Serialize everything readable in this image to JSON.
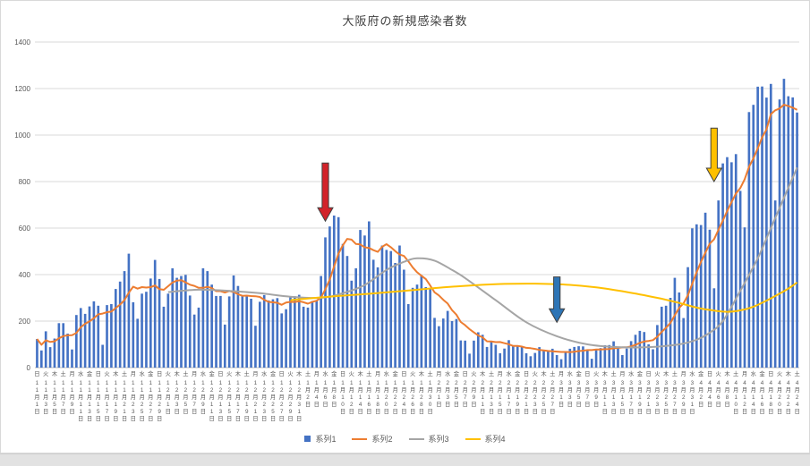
{
  "chart_data": {
    "type": "combo",
    "title": "大阪府の新規感染者数",
    "xlabel": "",
    "ylabel": "",
    "ylim": [
      0,
      1400
    ],
    "ytick_interval": 200,
    "grid": true,
    "legend_position": "bottom",
    "x_axis": {
      "tick_step": 2,
      "month_suffix": "月",
      "day_suffix": "日",
      "weekday_cycle": [
        "日",
        "月",
        "火",
        "水",
        "木",
        "金",
        "土"
      ],
      "start_weekday_index": 0,
      "months": [
        {
          "num": 11,
          "label": "11月",
          "days": 30
        },
        {
          "num": 12,
          "label": "12月",
          "days": 31
        },
        {
          "num": 1,
          "label": "1月",
          "days": 31
        },
        {
          "num": 2,
          "label": "2月",
          "days": 28
        },
        {
          "num": 3,
          "label": "3月",
          "days": 31
        },
        {
          "num": 4,
          "label": "4月",
          "days": 24
        }
      ]
    },
    "series": [
      {
        "name": "系列1",
        "type": "bar",
        "color": "#4472C4",
        "values": [
          123,
          74,
          156,
          88,
          125,
          191,
          191,
          146,
          78,
          226,
          256,
          231,
          263,
          285,
          266,
          98,
          269,
          273,
          338,
          370,
          415,
          490,
          281,
          210,
          318,
          326,
          383,
          463,
          381,
          262,
          318,
          427,
          386,
          394,
          399,
          310,
          228,
          258,
          427,
          415,
          357,
          308,
          308,
          185,
          306,
          396,
          351,
          309,
          311,
          296,
          180,
          283,
          312,
          289,
          294,
          299,
          233,
          251,
          302,
          307,
          313,
          262,
          258,
          286,
          286,
          394,
          560,
          607,
          654,
          647,
          532,
          480,
          374,
          427,
          592,
          568,
          629,
          464,
          431,
          525,
          506,
          501,
          450,
          525,
          421,
          273,
          343,
          357,
          397,
          346,
          338,
          214,
          178,
          211,
          244,
          200,
          209,
          117,
          116,
          60,
          116,
          152,
          141,
          89,
          112,
          98,
          62,
          82,
          118,
          91,
          91,
          90,
          62,
          49,
          63,
          88,
          76,
          72,
          81,
          54,
          36,
          65,
          81,
          89,
          92,
          91,
          73,
          38,
          80,
          84,
          96,
          97,
          113,
          84,
          54,
          82,
          114,
          141,
          158,
          153,
          100,
          79,
          183,
          262,
          266,
          300,
          386,
          323,
          213,
          432,
          599,
          616,
          613,
          666,
          593,
          341,
          719,
          878,
          905,
          883,
          918,
          760,
          603,
          1099,
          1130,
          1208,
          1209,
          1161,
          1220,
          719,
          1153,
          1242,
          1167,
          1162,
          1097
        ]
      },
      {
        "name": "系列2",
        "type": "line",
        "color": "#ED7D31",
        "derivation": "7-day moving average of 系列1"
      },
      {
        "name": "系列3",
        "type": "line",
        "color": "#A5A5A5",
        "keypoints": [
          [
            30,
            325
          ],
          [
            37,
            335
          ],
          [
            44,
            330
          ],
          [
            51,
            320
          ],
          [
            58,
            305
          ],
          [
            65,
            300
          ],
          [
            70,
            320
          ],
          [
            75,
            355
          ],
          [
            80,
            420
          ],
          [
            84,
            455
          ],
          [
            87,
            470
          ],
          [
            91,
            460
          ],
          [
            95,
            420
          ],
          [
            98,
            385
          ],
          [
            105,
            290
          ],
          [
            112,
            195
          ],
          [
            119,
            135
          ],
          [
            126,
            100
          ],
          [
            133,
            88
          ],
          [
            140,
            88
          ],
          [
            147,
            100
          ],
          [
            151,
            120
          ],
          [
            154,
            150
          ],
          [
            157,
            200
          ],
          [
            161,
            330
          ],
          [
            165,
            470
          ],
          [
            168,
            600
          ],
          [
            171,
            730
          ],
          [
            174,
            860
          ]
        ]
      },
      {
        "name": "系列4",
        "type": "line",
        "color": "#FFC000",
        "keypoints": [
          [
            58,
            290
          ],
          [
            65,
            302
          ],
          [
            72,
            312
          ],
          [
            79,
            322
          ],
          [
            86,
            333
          ],
          [
            93,
            345
          ],
          [
            100,
            354
          ],
          [
            107,
            360
          ],
          [
            114,
            361
          ],
          [
            121,
            357
          ],
          [
            128,
            345
          ],
          [
            135,
            325
          ],
          [
            142,
            300
          ],
          [
            147,
            278
          ],
          [
            151,
            258
          ],
          [
            155,
            245
          ],
          [
            158,
            240
          ],
          [
            161,
            246
          ],
          [
            164,
            262
          ],
          [
            167,
            288
          ],
          [
            170,
            318
          ],
          [
            172,
            340
          ],
          [
            174,
            366
          ]
        ]
      }
    ],
    "annotations": [
      {
        "name": "red-arrow",
        "shape": "down-arrow",
        "color": "#D2232A",
        "outline": "#404040",
        "day_index": 66,
        "value_top": 880,
        "value_tip": 630
      },
      {
        "name": "blue-arrow",
        "shape": "down-arrow",
        "color": "#2E75B6",
        "outline": "#404040",
        "day_index": 119,
        "value_top": 390,
        "value_tip": 195
      },
      {
        "name": "gold-arrow",
        "shape": "down-arrow",
        "color": "#FFC000",
        "outline": "#404040",
        "day_index": 155,
        "value_top": 1030,
        "value_tip": 800
      }
    ]
  },
  "colors": {
    "gridline": "#D9D9D9",
    "axis_line": "#BFBFBF",
    "tick_text": "#595959",
    "title_text": "#404040"
  }
}
